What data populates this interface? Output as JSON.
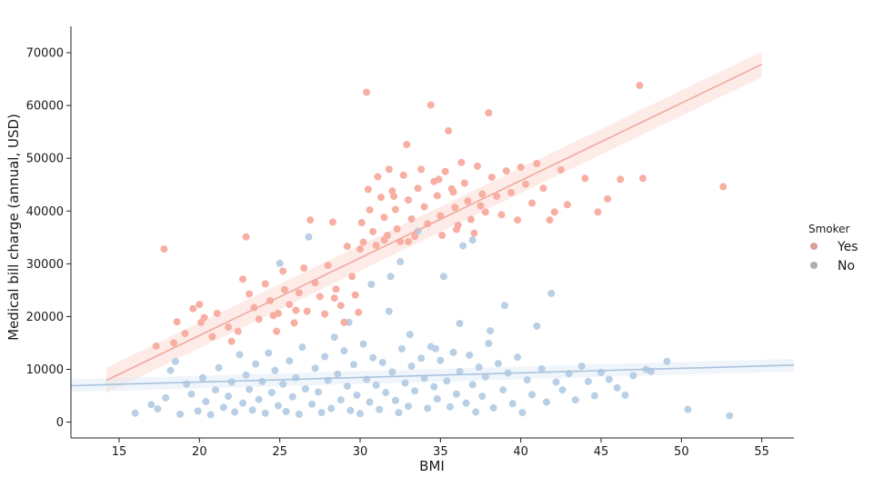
{
  "chart_data": {
    "type": "scatter",
    "xlabel": "BMI",
    "ylabel": "Medical bill charge (annual, USD)",
    "xlim": [
      12,
      57
    ],
    "ylim": [
      -3000,
      75000
    ],
    "x_ticks": [
      15,
      20,
      25,
      30,
      35,
      40,
      45,
      50,
      55
    ],
    "y_ticks": [
      0,
      10000,
      20000,
      30000,
      40000,
      50000,
      60000,
      70000
    ],
    "grid": false,
    "legend": {
      "title": "Smoker",
      "position": "right"
    },
    "series": [
      {
        "name": "Yes",
        "color": "#f8aea3",
        "points": [
          [
            17.8,
            32800
          ],
          [
            17.3,
            14400
          ],
          [
            18.4,
            15000
          ],
          [
            18.6,
            19000
          ],
          [
            19.1,
            16800
          ],
          [
            19.6,
            21500
          ],
          [
            20.0,
            22300
          ],
          [
            20.3,
            19800
          ],
          [
            20.1,
            18900
          ],
          [
            20.8,
            16200
          ],
          [
            21.1,
            20600
          ],
          [
            21.8,
            18000
          ],
          [
            22.0,
            15300
          ],
          [
            22.4,
            17200
          ],
          [
            22.7,
            27100
          ],
          [
            22.9,
            35100
          ],
          [
            23.1,
            24300
          ],
          [
            23.4,
            21700
          ],
          [
            23.7,
            19500
          ],
          [
            24.1,
            26200
          ],
          [
            24.4,
            23000
          ],
          [
            24.6,
            20200
          ],
          [
            24.8,
            17200
          ],
          [
            25.2,
            28600
          ],
          [
            25.3,
            25100
          ],
          [
            25.6,
            22300
          ],
          [
            25.9,
            18800
          ],
          [
            26.2,
            24500
          ],
          [
            26.5,
            29200
          ],
          [
            26.7,
            21000
          ],
          [
            26.9,
            38300
          ],
          [
            27.2,
            26400
          ],
          [
            27.5,
            23800
          ],
          [
            27.8,
            20500
          ],
          [
            28.0,
            29700
          ],
          [
            28.3,
            37900
          ],
          [
            28.5,
            25200
          ],
          [
            28.8,
            22100
          ],
          [
            29.0,
            18900
          ],
          [
            29.2,
            33300
          ],
          [
            29.5,
            27600
          ],
          [
            29.7,
            24100
          ],
          [
            29.9,
            20800
          ],
          [
            30.1,
            37800
          ],
          [
            30.2,
            34100
          ],
          [
            30.4,
            62500
          ],
          [
            30.5,
            44100
          ],
          [
            30.6,
            40200
          ],
          [
            30.8,
            36100
          ],
          [
            31.0,
            33500
          ],
          [
            31.1,
            46500
          ],
          [
            31.3,
            42600
          ],
          [
            31.5,
            38800
          ],
          [
            31.7,
            35400
          ],
          [
            31.8,
            47900
          ],
          [
            32.0,
            43800
          ],
          [
            32.2,
            40300
          ],
          [
            32.3,
            36600
          ],
          [
            32.5,
            34200
          ],
          [
            32.7,
            46800
          ],
          [
            32.9,
            52600
          ],
          [
            33.0,
            42100
          ],
          [
            33.2,
            38500
          ],
          [
            33.4,
            35200
          ],
          [
            33.6,
            44300
          ],
          [
            33.8,
            47900
          ],
          [
            34.0,
            40800
          ],
          [
            34.2,
            37600
          ],
          [
            34.4,
            60100
          ],
          [
            34.6,
            45600
          ],
          [
            34.8,
            42900
          ],
          [
            35.0,
            39100
          ],
          [
            35.1,
            35400
          ],
          [
            35.3,
            47500
          ],
          [
            35.5,
            55200
          ],
          [
            35.7,
            44200
          ],
          [
            35.9,
            40700
          ],
          [
            36.1,
            37300
          ],
          [
            36.3,
            49200
          ],
          [
            36.5,
            45300
          ],
          [
            36.7,
            41900
          ],
          [
            36.9,
            38400
          ],
          [
            37.1,
            35800
          ],
          [
            37.3,
            48500
          ],
          [
            37.6,
            43200
          ],
          [
            37.8,
            39800
          ],
          [
            38.0,
            58600
          ],
          [
            38.2,
            46400
          ],
          [
            38.5,
            42800
          ],
          [
            38.8,
            39300
          ],
          [
            39.1,
            47600
          ],
          [
            39.4,
            43500
          ],
          [
            39.8,
            38300
          ],
          [
            40.0,
            48300
          ],
          [
            40.3,
            45100
          ],
          [
            40.7,
            41500
          ],
          [
            41.0,
            49000
          ],
          [
            41.4,
            44300
          ],
          [
            41.8,
            38300
          ],
          [
            42.1,
            39800
          ],
          [
            42.5,
            47800
          ],
          [
            42.9,
            41200
          ],
          [
            44.0,
            46200
          ],
          [
            44.8,
            39800
          ],
          [
            45.4,
            42300
          ],
          [
            46.2,
            46000
          ],
          [
            47.4,
            63800
          ],
          [
            47.6,
            46200
          ],
          [
            52.6,
            44600
          ],
          [
            31.5,
            34500
          ],
          [
            33.0,
            34200
          ],
          [
            30.0,
            32800
          ],
          [
            28.4,
            23500
          ],
          [
            26.0,
            21200
          ],
          [
            24.9,
            20600
          ],
          [
            36.0,
            36500
          ],
          [
            37.5,
            41000
          ],
          [
            34.9,
            46000
          ],
          [
            32.1,
            42800
          ],
          [
            35.8,
            43600
          ]
        ]
      },
      {
        "name": "No",
        "color": "#b9cfe5",
        "points": [
          [
            16.0,
            1700
          ],
          [
            17.0,
            3300
          ],
          [
            17.4,
            2500
          ],
          [
            17.9,
            4600
          ],
          [
            18.2,
            9800
          ],
          [
            18.5,
            11500
          ],
          [
            18.8,
            1500
          ],
          [
            19.2,
            7200
          ],
          [
            19.5,
            5300
          ],
          [
            19.9,
            2100
          ],
          [
            20.2,
            8400
          ],
          [
            20.4,
            3900
          ],
          [
            20.7,
            1400
          ],
          [
            21.0,
            6100
          ],
          [
            21.2,
            10300
          ],
          [
            21.5,
            2800
          ],
          [
            21.8,
            4900
          ],
          [
            22.0,
            7600
          ],
          [
            22.2,
            1900
          ],
          [
            22.5,
            12800
          ],
          [
            22.7,
            3600
          ],
          [
            22.9,
            8900
          ],
          [
            23.1,
            6200
          ],
          [
            23.3,
            2300
          ],
          [
            23.5,
            11000
          ],
          [
            23.7,
            4300
          ],
          [
            23.9,
            7700
          ],
          [
            24.1,
            1700
          ],
          [
            24.3,
            13100
          ],
          [
            24.5,
            5600
          ],
          [
            24.7,
            9800
          ],
          [
            24.9,
            3100
          ],
          [
            25.0,
            30100
          ],
          [
            25.2,
            7200
          ],
          [
            25.4,
            2000
          ],
          [
            25.6,
            11600
          ],
          [
            25.8,
            4800
          ],
          [
            26.0,
            8400
          ],
          [
            26.2,
            1500
          ],
          [
            26.4,
            14200
          ],
          [
            26.6,
            6300
          ],
          [
            26.8,
            35100
          ],
          [
            27.0,
            3400
          ],
          [
            27.2,
            10200
          ],
          [
            27.4,
            5700
          ],
          [
            27.6,
            1800
          ],
          [
            27.8,
            12400
          ],
          [
            28.0,
            7900
          ],
          [
            28.2,
            2600
          ],
          [
            28.4,
            16100
          ],
          [
            28.6,
            9100
          ],
          [
            28.8,
            4200
          ],
          [
            29.0,
            13500
          ],
          [
            29.2,
            6800
          ],
          [
            29.4,
            2200
          ],
          [
            29.6,
            10900
          ],
          [
            29.8,
            5100
          ],
          [
            30.0,
            1600
          ],
          [
            30.2,
            14800
          ],
          [
            30.4,
            8100
          ],
          [
            30.6,
            3800
          ],
          [
            30.8,
            12200
          ],
          [
            31.0,
            7000
          ],
          [
            31.2,
            2400
          ],
          [
            31.4,
            11300
          ],
          [
            31.6,
            5600
          ],
          [
            31.8,
            21000
          ],
          [
            32.0,
            9500
          ],
          [
            32.2,
            4100
          ],
          [
            32.4,
            1800
          ],
          [
            32.6,
            13900
          ],
          [
            32.8,
            7400
          ],
          [
            33.0,
            3000
          ],
          [
            33.2,
            10600
          ],
          [
            33.4,
            5900
          ],
          [
            33.6,
            36200
          ],
          [
            33.8,
            12100
          ],
          [
            34.0,
            8300
          ],
          [
            34.2,
            2600
          ],
          [
            34.4,
            14300
          ],
          [
            34.6,
            6700
          ],
          [
            34.8,
            4400
          ],
          [
            35.0,
            11700
          ],
          [
            35.2,
            27600
          ],
          [
            35.4,
            7800
          ],
          [
            35.6,
            2900
          ],
          [
            35.8,
            13200
          ],
          [
            36.0,
            5300
          ],
          [
            36.2,
            9600
          ],
          [
            36.4,
            33400
          ],
          [
            36.6,
            3600
          ],
          [
            36.8,
            12700
          ],
          [
            37.0,
            7100
          ],
          [
            37.2,
            1900
          ],
          [
            37.4,
            10400
          ],
          [
            37.6,
            4900
          ],
          [
            37.8,
            8600
          ],
          [
            38.0,
            14900
          ],
          [
            38.3,
            2700
          ],
          [
            38.6,
            11100
          ],
          [
            38.9,
            6100
          ],
          [
            39.2,
            9300
          ],
          [
            39.5,
            3500
          ],
          [
            39.8,
            12300
          ],
          [
            40.1,
            1800
          ],
          [
            40.4,
            8000
          ],
          [
            40.7,
            5200
          ],
          [
            41.0,
            18200
          ],
          [
            41.3,
            10100
          ],
          [
            41.6,
            3800
          ],
          [
            41.9,
            24400
          ],
          [
            42.2,
            7600
          ],
          [
            42.6,
            6100
          ],
          [
            43.0,
            9200
          ],
          [
            43.4,
            4200
          ],
          [
            43.8,
            10600
          ],
          [
            44.2,
            7700
          ],
          [
            44.6,
            5000
          ],
          [
            45.0,
            9400
          ],
          [
            45.5,
            8100
          ],
          [
            46.0,
            6500
          ],
          [
            46.5,
            5100
          ],
          [
            47.0,
            8800
          ],
          [
            47.8,
            10000
          ],
          [
            48.1,
            9600
          ],
          [
            49.1,
            11500
          ],
          [
            50.4,
            2400
          ],
          [
            53.0,
            1200
          ],
          [
            30.7,
            26100
          ],
          [
            29.3,
            18900
          ],
          [
            31.9,
            27600
          ],
          [
            34.7,
            13900
          ],
          [
            33.1,
            16600
          ],
          [
            32.5,
            30400
          ],
          [
            36.2,
            18700
          ],
          [
            38.1,
            17300
          ],
          [
            39.0,
            22100
          ],
          [
            37.0,
            34500
          ]
        ]
      }
    ],
    "trend_lines": [
      {
        "series": "Yes",
        "x": [
          14.2,
          55.0
        ],
        "y": [
          7900,
          67800
        ]
      },
      {
        "series": "No",
        "x": [
          12.0,
          57.0
        ],
        "y": [
          6900,
          10800
        ]
      }
    ]
  }
}
